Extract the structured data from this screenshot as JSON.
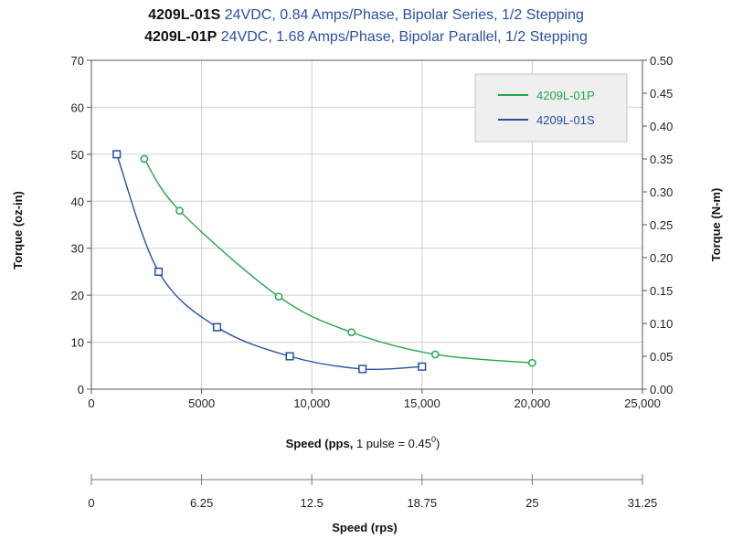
{
  "header": {
    "line1": {
      "model": "4209L-01S",
      "spec": "24VDC, 0.84 Amps/Phase, Bipolar Series, 1/2 Stepping"
    },
    "line2": {
      "model": "4209L-01P",
      "spec": "24VDC, 1.68 Amps/Phase, Bipolar Parallel, 1/2 Stepping"
    }
  },
  "chart_data": {
    "type": "line",
    "xlabel": {
      "bold": "Speed (pps,",
      "normal": " 1 pulse = 0.45",
      "sup": "0",
      "close": ")"
    },
    "ylabel_left": "Torque (oz-in)",
    "ylabel_right": "Torque (N-m)",
    "xlim": [
      0,
      25000
    ],
    "ylim": [
      0,
      70
    ],
    "y2lim": [
      0,
      0.5
    ],
    "x_ticks": [
      "0",
      "5000",
      "10,000",
      "15,000",
      "20,000",
      "25,000"
    ],
    "y_ticks": [
      "0",
      "10",
      "20",
      "30",
      "40",
      "50",
      "60",
      "70"
    ],
    "y2_ticks": [
      "0.00",
      "0.05",
      "0.10",
      "0.15",
      "0.20",
      "0.25",
      "0.30",
      "0.35",
      "0.40",
      "0.45",
      "0.50"
    ],
    "grid": true,
    "legend_position": "top-right",
    "series": [
      {
        "name": "4209L-01P",
        "color": "#22a64a",
        "marker": "circle",
        "x": [
          2400,
          4000,
          8500,
          11800,
          15600,
          20000
        ],
        "y": [
          49,
          38,
          19.7,
          12.1,
          7.4,
          5.6
        ]
      },
      {
        "name": "4209L-01S",
        "color": "#2a4ea6",
        "marker": "square",
        "x": [
          1150,
          3050,
          5700,
          9000,
          12300,
          15000
        ],
        "y": [
          50,
          25,
          13.2,
          7,
          4.3,
          4.8
        ]
      }
    ],
    "secondary_axis": {
      "label": "Speed (rps)",
      "ticks": [
        "0",
        "6.25",
        "12.5",
        "18.75",
        "25",
        "31.25"
      ]
    }
  }
}
